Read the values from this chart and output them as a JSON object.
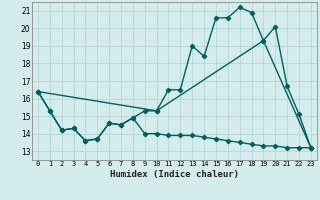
{
  "xlabel": "Humidex (Indice chaleur)",
  "background_color": "#d4ecec",
  "grid_color": "#b0d4d4",
  "line_color": "#006060",
  "xlim": [
    -0.5,
    23.5
  ],
  "ylim": [
    12.5,
    21.5
  ],
  "xticks": [
    0,
    1,
    2,
    3,
    4,
    5,
    6,
    7,
    8,
    9,
    10,
    11,
    12,
    13,
    14,
    15,
    16,
    17,
    18,
    19,
    20,
    21,
    22,
    23
  ],
  "yticks": [
    13,
    14,
    15,
    16,
    17,
    18,
    19,
    20,
    21
  ],
  "series1_x": [
    0,
    1,
    2,
    3,
    4,
    5,
    6,
    7,
    8,
    9,
    10,
    11,
    12,
    13,
    14,
    15,
    16,
    17,
    18,
    19,
    20,
    21,
    22,
    23
  ],
  "series1_y": [
    16.4,
    15.3,
    14.2,
    14.3,
    13.6,
    13.7,
    14.6,
    14.5,
    14.9,
    15.3,
    15.3,
    16.5,
    16.5,
    19.0,
    18.4,
    20.6,
    20.6,
    21.2,
    20.9,
    19.3,
    20.1,
    16.7,
    15.1,
    13.2
  ],
  "series2_x": [
    0,
    1,
    2,
    3,
    4,
    5,
    6,
    7,
    8,
    9,
    10,
    11,
    12,
    13,
    14,
    15,
    16,
    17,
    18,
    19,
    20,
    21,
    22,
    23
  ],
  "series2_y": [
    16.4,
    15.3,
    14.2,
    14.3,
    13.6,
    13.7,
    14.6,
    14.5,
    14.9,
    14.0,
    14.0,
    13.9,
    13.9,
    13.9,
    13.8,
    13.7,
    13.6,
    13.5,
    13.4,
    13.3,
    13.3,
    13.2,
    13.2,
    13.2
  ],
  "series3_x": [
    0,
    10,
    19,
    23
  ],
  "series3_y": [
    16.4,
    15.3,
    19.3,
    13.2
  ],
  "marker": "D",
  "markersize": 2.2,
  "linewidth": 1.0
}
